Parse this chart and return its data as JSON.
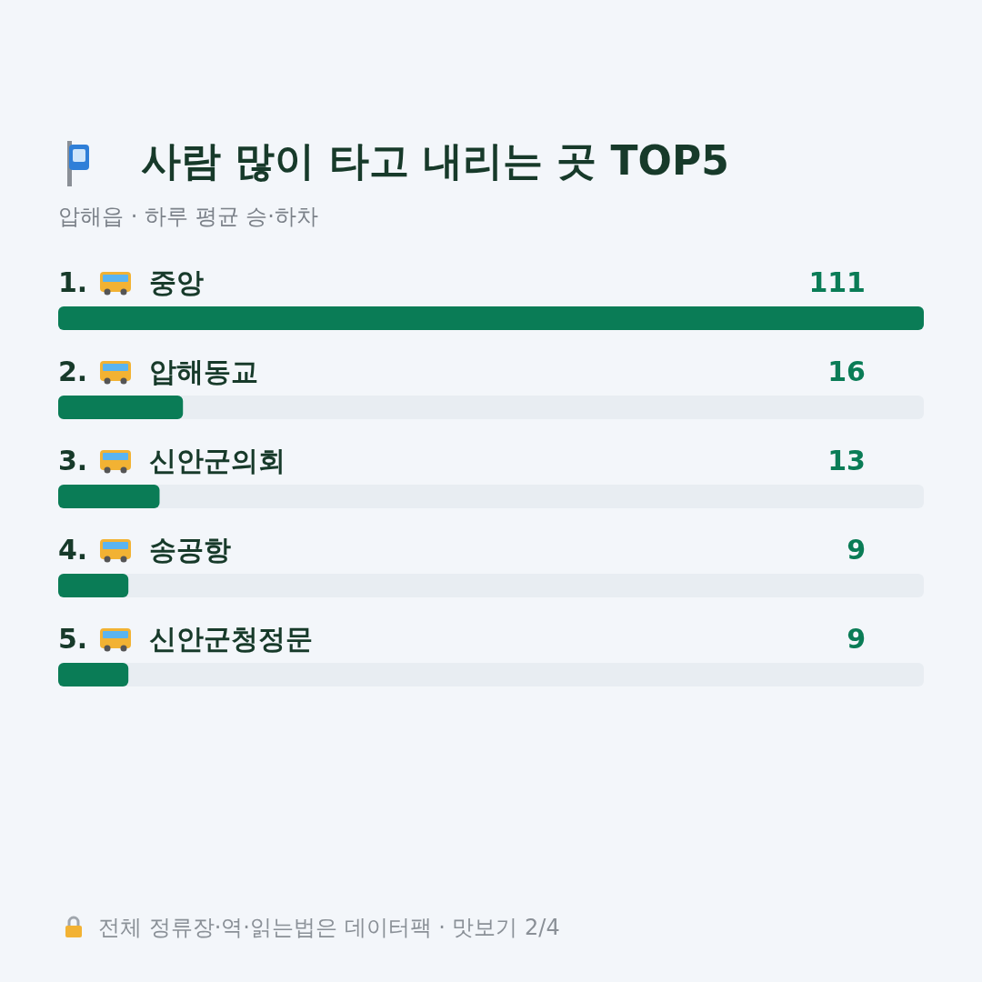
{
  "chart_data": {
    "type": "bar",
    "orientation": "horizontal",
    "title": "사람 많이 타고 내리는 곳 TOP5",
    "subtitle": "압해읍 · 하루 평균 승·하차",
    "categories": [
      "1. 중앙",
      "2. 압해동교",
      "3. 신안군의회",
      "4. 송공항",
      "5. 신안군청정문"
    ],
    "values": [
      111,
      16,
      13,
      9,
      9
    ],
    "color": "#0a7c56",
    "data_labels": true,
    "annotations": [
      "전체 정류장·역·읽는법은 데이터팩 · 맛보기 2/4"
    ]
  }
}
